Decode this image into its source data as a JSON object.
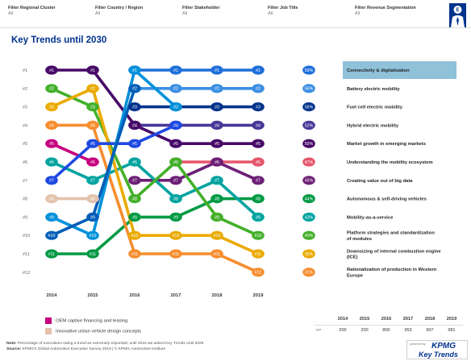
{
  "filters": [
    {
      "label": "Filter Regional Cluster",
      "value": "All"
    },
    {
      "label": "Filter Country / Region",
      "value": "All"
    },
    {
      "label": "Filter Stakeholder",
      "value": "All"
    },
    {
      "label": "Filter Job Title",
      "value": "All"
    },
    {
      "label": "Filter Revenue Segmentation",
      "value": "All"
    }
  ],
  "page_title": "Key Trends until 2030",
  "chart_data": {
    "type": "line",
    "subtype": "bump",
    "x": [
      "2014",
      "2015",
      "2016",
      "2017",
      "2018",
      "2019"
    ],
    "y_ticks": [
      "#1",
      "#2",
      "#3",
      "#4",
      "#5",
      "#6",
      "#7",
      "#8",
      "#9",
      "#10",
      "#11",
      "#12"
    ],
    "y_order": "rank, #1 at top",
    "series": [
      {
        "name": "Connectivity & digitalization",
        "ranks": [
          null,
          null,
          1,
          1,
          1,
          1
        ],
        "pct": "59%",
        "color": "#1e6fd9",
        "highlight": true
      },
      {
        "name": "Battery electric mobility",
        "ranks": [
          null,
          null,
          2,
          2,
          2,
          2
        ],
        "pct": "56%",
        "color": "#3a8fe3"
      },
      {
        "name": "Fuel cell electric mobility",
        "ranks": [
          null,
          null,
          3,
          3,
          3,
          3
        ],
        "pct": "56%",
        "color": "#00338d"
      },
      {
        "name": "Hybrid electric mobility",
        "ranks": [
          null,
          null,
          4,
          4,
          4,
          4
        ],
        "pct": "52%",
        "color": "#483698"
      },
      {
        "name": "Market growth in emerging markets",
        "ranks": [
          1,
          1,
          4,
          5,
          5,
          5
        ],
        "pct": "50%",
        "color": "#470a68"
      },
      {
        "name": "Understanding the mobility ecosystem",
        "ranks": [
          null,
          null,
          null,
          6,
          6,
          6
        ],
        "pct": "47%",
        "color": "#e6556b"
      },
      {
        "name": "Creating value out of big data",
        "ranks": [
          null,
          null,
          7,
          7,
          6,
          7
        ],
        "pct": "45%",
        "color": "#6d2077"
      },
      {
        "name": "Autonomous & self-driving vehicles",
        "ranks": [
          11,
          11,
          9,
          9,
          8,
          8
        ],
        "pct": "44%",
        "color": "#009a44"
      },
      {
        "name": "Mobility-as-a-service",
        "ranks": [
          6,
          7,
          6,
          8,
          7,
          9
        ],
        "pct": "43%",
        "color": "#00a3a1"
      },
      {
        "name": "Platform strategies and standardization of modules",
        "ranks": [
          2,
          3,
          8,
          6,
          9,
          10
        ],
        "pct": "40%",
        "color": "#43b02a"
      },
      {
        "name": "Downsizing of internal combustion engine (ICE)",
        "ranks": [
          3,
          2,
          10,
          10,
          10,
          11
        ],
        "pct": "35%",
        "color": "#eaaa00"
      },
      {
        "name": "Rationalization of production in Western Europe",
        "ranks": [
          4,
          4,
          11,
          11,
          11,
          12
        ],
        "pct": "31%",
        "color": "#f68d2e"
      },
      {
        "name": "OEM captive financing and leasing",
        "ranks": [
          5,
          6,
          null,
          null,
          null,
          null
        ],
        "color": "#c6007e"
      },
      {
        "name": "Innovative urban vehicle design concepts",
        "ranks": [
          8,
          8,
          null,
          null,
          null,
          null
        ],
        "color": "#e3c1ac"
      },
      {
        "name": "",
        "ranks": [
          7,
          5,
          5,
          4,
          null,
          null
        ],
        "color": "#1e49e2"
      },
      {
        "name": "",
        "ranks": [
          9,
          10,
          1,
          3,
          null,
          null
        ],
        "color": "#0091da"
      },
      {
        "name": "",
        "ranks": [
          10,
          9,
          2,
          null,
          null,
          null
        ],
        "color": "#005eb8"
      }
    ]
  },
  "legend": [
    {
      "label": "OEM captive financing and leasing",
      "color": "#c6007e"
    },
    {
      "label": "Innovative urban vehicle design concepts",
      "color": "#e3c1ac"
    }
  ],
  "n_table": {
    "years": [
      "2014",
      "2015",
      "2016",
      "2017",
      "2018",
      "2019"
    ],
    "row_label": "n=",
    "values": [
      "200",
      "200",
      "800",
      "953",
      "907",
      "981"
    ]
  },
  "note": {
    "label": "Note:",
    "text": "Percentage of executives rating a trend as extremely important; until 2016 we asked Key Trends until 2025",
    "source_label": "Source:",
    "source_text": "KPMG's Global Automotive Executive Survey 2019 | © KPMG Automotive Institute"
  },
  "logo": {
    "powered": "powered by",
    "brand": "KPMG",
    "product": "Key Trends"
  }
}
